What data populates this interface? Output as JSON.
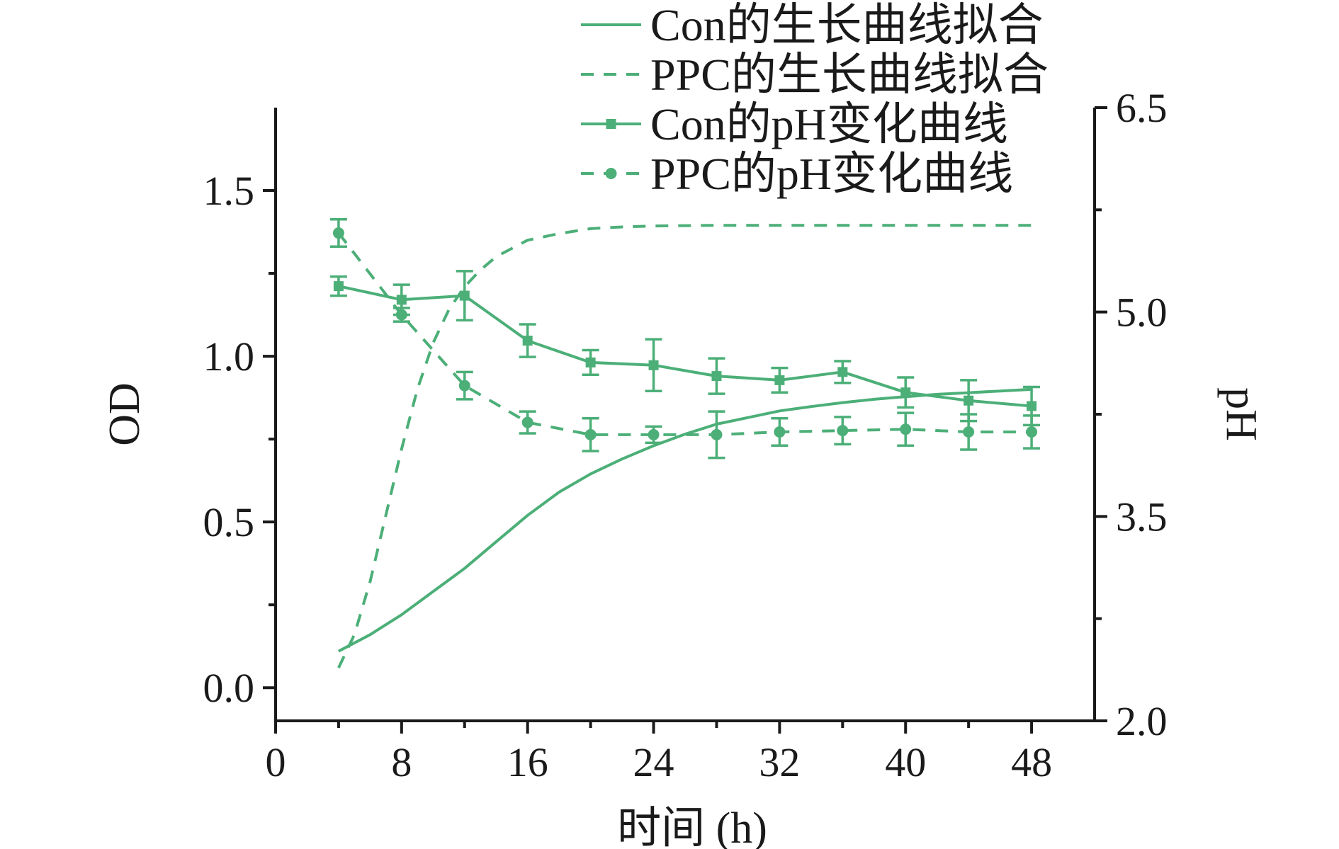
{
  "chart_data": {
    "type": "line",
    "x_axis": {
      "label": "时间 (h)",
      "range": [
        0,
        52
      ],
      "ticks": [
        0,
        8,
        16,
        24,
        32,
        40,
        48
      ]
    },
    "y_axis_left": {
      "label": "OD",
      "range": [
        -0.1,
        1.75
      ],
      "ticks": [
        0.0,
        0.5,
        1.0,
        1.5
      ],
      "tick_labels": [
        "0.0",
        "0.5",
        "1.0",
        "1.5"
      ]
    },
    "y_axis_right": {
      "label": "pH",
      "range": [
        2.0,
        6.5
      ],
      "ticks": [
        2.0,
        3.5,
        5.0,
        6.5
      ],
      "tick_labels": [
        "2.0",
        "3.5",
        "5.0",
        "6.5"
      ]
    },
    "color": "#4caf78",
    "legend_position": "top-right",
    "series": [
      {
        "name": "Con的生长曲线拟合",
        "axis": "left",
        "style": "solid",
        "marker": "none",
        "x": [
          4,
          6,
          8,
          10,
          12,
          14,
          16,
          18,
          20,
          22,
          24,
          26,
          28,
          30,
          32,
          34,
          36,
          38,
          40,
          42,
          44,
          46,
          48
        ],
        "y": [
          0.11,
          0.16,
          0.22,
          0.29,
          0.36,
          0.44,
          0.52,
          0.59,
          0.645,
          0.69,
          0.73,
          0.765,
          0.795,
          0.815,
          0.835,
          0.848,
          0.86,
          0.87,
          0.878,
          0.885,
          0.89,
          0.895,
          0.9
        ]
      },
      {
        "name": "PPC的生长曲线拟合",
        "axis": "left",
        "style": "dashed",
        "marker": "none",
        "x": [
          4,
          5,
          6,
          7,
          8,
          9,
          10,
          11,
          12,
          13,
          14,
          16,
          18,
          20,
          22,
          24,
          28,
          32,
          36,
          40,
          44,
          48
        ],
        "y": [
          0.06,
          0.16,
          0.32,
          0.52,
          0.72,
          0.9,
          1.04,
          1.14,
          1.21,
          1.26,
          1.3,
          1.35,
          1.37,
          1.385,
          1.39,
          1.393,
          1.395,
          1.395,
          1.395,
          1.395,
          1.395,
          1.395
        ]
      },
      {
        "name": "Con的pH变化曲线",
        "axis": "right",
        "style": "solid",
        "marker": "square",
        "x": [
          4,
          8,
          12,
          16,
          20,
          24,
          28,
          32,
          36,
          40,
          44,
          48
        ],
        "y": [
          5.19,
          5.09,
          5.12,
          4.79,
          4.63,
          4.61,
          4.53,
          4.5,
          4.56,
          4.41,
          4.35,
          4.31
        ],
        "error": [
          0.07,
          0.11,
          0.18,
          0.12,
          0.09,
          0.19,
          0.13,
          0.09,
          0.08,
          0.11,
          0.15,
          0.14
        ]
      },
      {
        "name": "PPC的pH变化曲线",
        "axis": "right",
        "style": "dashed",
        "marker": "circle",
        "x": [
          4,
          8,
          12,
          16,
          20,
          24,
          28,
          32,
          36,
          40,
          44,
          48
        ],
        "y": [
          5.58,
          4.98,
          4.46,
          4.19,
          4.1,
          4.1,
          4.1,
          4.12,
          4.13,
          4.14,
          4.12,
          4.12
        ],
        "error": [
          0.1,
          0.05,
          0.1,
          0.08,
          0.12,
          0.06,
          0.17,
          0.1,
          0.1,
          0.12,
          0.13,
          0.12
        ]
      }
    ]
  }
}
